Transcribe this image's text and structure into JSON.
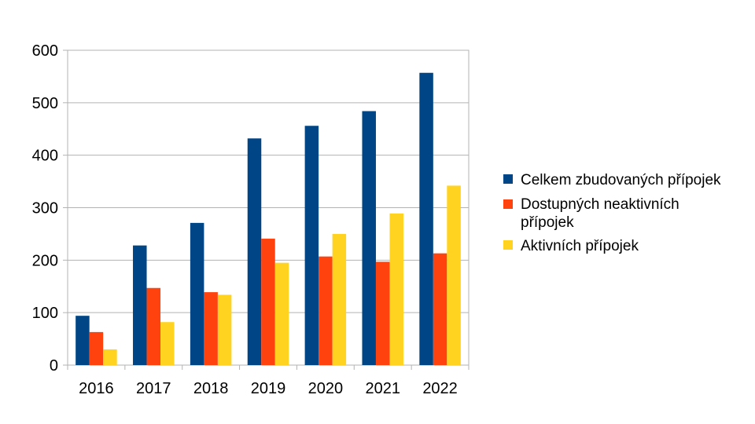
{
  "chart_data": {
    "type": "bar",
    "title": "",
    "xlabel": "",
    "ylabel": "",
    "categories": [
      "2016",
      "2017",
      "2018",
      "2019",
      "2020",
      "2021",
      "2022"
    ],
    "ylim": [
      0,
      600
    ],
    "yticks": [
      0,
      100,
      200,
      300,
      400,
      500,
      600
    ],
    "grid": true,
    "legend_position": "right",
    "series": [
      {
        "name": "Celkem zbudovaných přípojek",
        "color": "#004586",
        "values": [
          94,
          228,
          271,
          432,
          456,
          484,
          557
        ]
      },
      {
        "name": "Dostupných neaktivních přípojek",
        "color": "#ff420e",
        "values": [
          63,
          147,
          139,
          241,
          207,
          197,
          213
        ]
      },
      {
        "name": "Aktivních přípojek",
        "color": "#ffd320",
        "values": [
          30,
          82,
          134,
          195,
          250,
          289,
          342
        ]
      }
    ]
  }
}
